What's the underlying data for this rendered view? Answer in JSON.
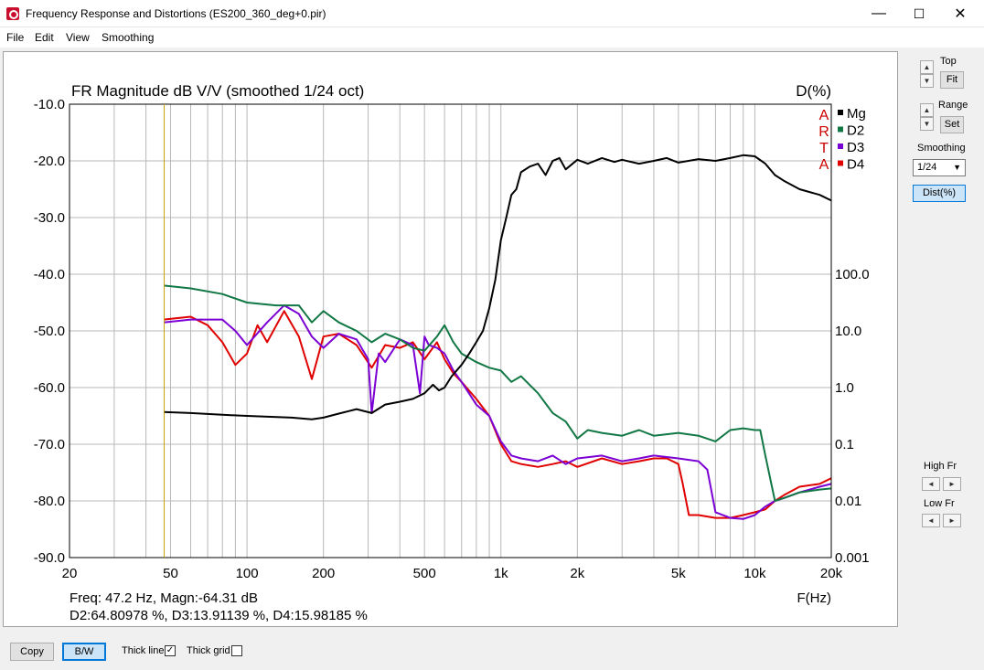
{
  "window": {
    "title": "Frequency Response and Distortions (ES200_360_deg+0.pir)",
    "minimize_glyph": "—",
    "maximize_glyph": "☐",
    "close_glyph": "✕"
  },
  "menu": [
    "File",
    "Edit",
    "View",
    "Smoothing"
  ],
  "side_panel": {
    "top_label": "Top",
    "fit_label": "Fit",
    "range_label": "Range",
    "set_label": "Set",
    "smoothing_label": "Smoothing",
    "smoothing_value": "1/24",
    "dist_label": "Dist(%)",
    "high_fr_label": "High Fr",
    "low_fr_label": "Low Fr"
  },
  "bottom": {
    "copy_label": "Copy",
    "bw_label": "B/W",
    "thick_line_label": "Thick line",
    "thick_line_checked": true,
    "thick_grid_label": "Thick grid",
    "thick_grid_checked": false
  },
  "chart_data": {
    "type": "line",
    "title": "FR Magnitude dB V/V (smoothed 1/24 oct)",
    "right_axis_title": "D(%)",
    "xlabel": "F(Hz)",
    "x_scale": "log",
    "xlim": [
      20,
      20000
    ],
    "x_ticks": [
      20,
      50,
      100,
      200,
      500,
      1000,
      2000,
      5000,
      10000,
      20000
    ],
    "x_tick_labels": [
      "20",
      "50",
      "100",
      "200",
      "500",
      "1k",
      "2k",
      "5k",
      "10k",
      "20k"
    ],
    "ylim": [
      -90,
      -10
    ],
    "y_ticks": [
      -10,
      -20,
      -30,
      -40,
      -50,
      -60,
      -70,
      -80,
      -90
    ],
    "y_tick_labels": [
      "-10.0",
      "-20.0",
      "-30.0",
      "-40.0",
      "-50.0",
      "-60.0",
      "-70.0",
      "-80.0",
      "-90.0"
    ],
    "right_ticks_db": [
      -40,
      -50,
      -60,
      -70,
      -80,
      -90
    ],
    "right_tick_labels": [
      "100.0",
      "10.0",
      "1.0",
      "0.1",
      "0.01",
      "0.001"
    ],
    "grid": true,
    "logo_letters": [
      "A",
      "R",
      "T",
      "A"
    ],
    "logo_color": "#cc0000",
    "legend_position": "top-right",
    "cursor_freq": 47.2,
    "cursor_color": "#c8a000",
    "readout_line1": "Freq: 47.2 Hz, Magn:-64.31 dB",
    "readout_line2": "D2:64.80978 %, D3:13.91139 %, D4:15.98185 %",
    "series": [
      {
        "name": "Mg",
        "color": "#000000",
        "x": [
          47,
          60,
          80,
          100,
          150,
          180,
          200,
          230,
          270,
          310,
          350,
          400,
          450,
          500,
          540,
          570,
          600,
          640,
          700,
          750,
          800,
          850,
          900,
          950,
          1000,
          1050,
          1100,
          1150,
          1200,
          1300,
          1400,
          1500,
          1600,
          1700,
          1800,
          2000,
          2200,
          2500,
          2800,
          3000,
          3500,
          4000,
          4500,
          5000,
          6000,
          7000,
          8000,
          9000,
          10000,
          11000,
          12000,
          13000,
          15000,
          18000,
          20000
        ],
        "y": [
          -64.3,
          -64.5,
          -64.8,
          -65.0,
          -65.3,
          -65.6,
          -65.3,
          -64.6,
          -63.8,
          -64.5,
          -63.0,
          -62.5,
          -62.0,
          -61.0,
          -59.5,
          -60.5,
          -60.0,
          -58.0,
          -56.0,
          -54.0,
          -52.0,
          -50.0,
          -46.0,
          -41.0,
          -34.0,
          -30.0,
          -26.0,
          -25.0,
          -22.0,
          -21.0,
          -20.5,
          -22.5,
          -20.0,
          -19.5,
          -21.5,
          -19.8,
          -20.5,
          -19.5,
          -20.2,
          -19.8,
          -20.5,
          -20.0,
          -19.5,
          -20.3,
          -19.7,
          -20.0,
          -19.5,
          -19.0,
          -19.2,
          -20.5,
          -22.5,
          -23.5,
          -25.0,
          -26.0,
          -27.0
        ]
      },
      {
        "name": "D2",
        "color": "#117744",
        "x": [
          47,
          60,
          80,
          100,
          130,
          160,
          180,
          200,
          230,
          270,
          310,
          350,
          400,
          450,
          500,
          560,
          600,
          650,
          700,
          800,
          900,
          1000,
          1100,
          1200,
          1400,
          1600,
          1800,
          2000,
          2200,
          2500,
          3000,
          3500,
          4000,
          5000,
          6000,
          7000,
          8000,
          9000,
          10000,
          10500,
          11000,
          12000,
          13000,
          15000,
          18000,
          20000
        ],
        "y": [
          -42.0,
          -42.5,
          -43.5,
          -45.0,
          -45.5,
          -45.5,
          -48.5,
          -46.5,
          -48.5,
          -50.0,
          -52.0,
          -50.5,
          -51.5,
          -53.0,
          -53.5,
          -51.0,
          -49.0,
          -52.0,
          -54.0,
          -55.5,
          -56.5,
          -57.0,
          -59.0,
          -58.0,
          -61.0,
          -64.5,
          -66.0,
          -69.0,
          -67.5,
          -68.0,
          -68.5,
          -67.5,
          -68.5,
          -68.0,
          -68.5,
          -69.5,
          -67.5,
          -67.2,
          -67.5,
          -67.5,
          -72.0,
          -80.0,
          -79.5,
          -78.5,
          -78.0,
          -77.8
        ]
      },
      {
        "name": "D3",
        "color": "#7b00d4",
        "x": [
          47,
          60,
          80,
          90,
          100,
          120,
          140,
          160,
          180,
          200,
          230,
          270,
          300,
          310,
          330,
          350,
          400,
          450,
          480,
          500,
          520,
          560,
          600,
          650,
          700,
          800,
          900,
          1000,
          1100,
          1200,
          1400,
          1600,
          1800,
          2000,
          2500,
          3000,
          3500,
          4000,
          5000,
          6000,
          6500,
          7000,
          8000,
          9000,
          10000,
          11000,
          12000,
          13000,
          15000,
          18000,
          20000
        ],
        "y": [
          -48.5,
          -48.0,
          -48.0,
          -50.0,
          -52.5,
          -48.5,
          -45.5,
          -47.0,
          -51.0,
          -53.0,
          -50.5,
          -51.5,
          -55.0,
          -64.5,
          -54.0,
          -55.5,
          -51.5,
          -52.5,
          -61.0,
          -51.0,
          -52.5,
          -53.0,
          -54.0,
          -57.0,
          -59.0,
          -63.0,
          -65.0,
          -69.5,
          -72.0,
          -72.5,
          -73.0,
          -72.0,
          -73.5,
          -72.5,
          -72.0,
          -73.0,
          -72.5,
          -72.0,
          -72.5,
          -73.0,
          -74.5,
          -82.0,
          -83.0,
          -83.2,
          -82.5,
          -81.0,
          -80.0,
          -79.5,
          -78.5,
          -77.5,
          -77.0
        ]
      },
      {
        "name": "D4",
        "color": "#e00000",
        "x": [
          47,
          60,
          70,
          80,
          90,
          100,
          110,
          120,
          140,
          160,
          180,
          200,
          230,
          270,
          310,
          350,
          400,
          450,
          500,
          560,
          600,
          650,
          700,
          800,
          900,
          1000,
          1100,
          1200,
          1400,
          1600,
          1800,
          2000,
          2500,
          3000,
          3500,
          4000,
          4500,
          5000,
          5200,
          5500,
          6000,
          7000,
          8000,
          9000,
          10000,
          11000,
          12000,
          13000,
          15000,
          18000,
          20000
        ],
        "y": [
          -48.0,
          -47.5,
          -49.0,
          -52.0,
          -56.0,
          -54.0,
          -49.0,
          -52.0,
          -46.5,
          -51.0,
          -58.5,
          -51.0,
          -50.5,
          -52.5,
          -56.5,
          -52.5,
          -53.0,
          -52.0,
          -55.0,
          -52.0,
          -55.0,
          -57.5,
          -59.0,
          -62.0,
          -65.0,
          -70.0,
          -73.0,
          -73.5,
          -74.0,
          -73.5,
          -73.0,
          -74.0,
          -72.5,
          -73.5,
          -73.0,
          -72.5,
          -72.5,
          -73.5,
          -77.0,
          -82.5,
          -82.5,
          -83.0,
          -83.0,
          -82.5,
          -82.0,
          -81.5,
          -80.0,
          -79.0,
          -77.5,
          -77.0,
          -76.0
        ]
      }
    ]
  }
}
